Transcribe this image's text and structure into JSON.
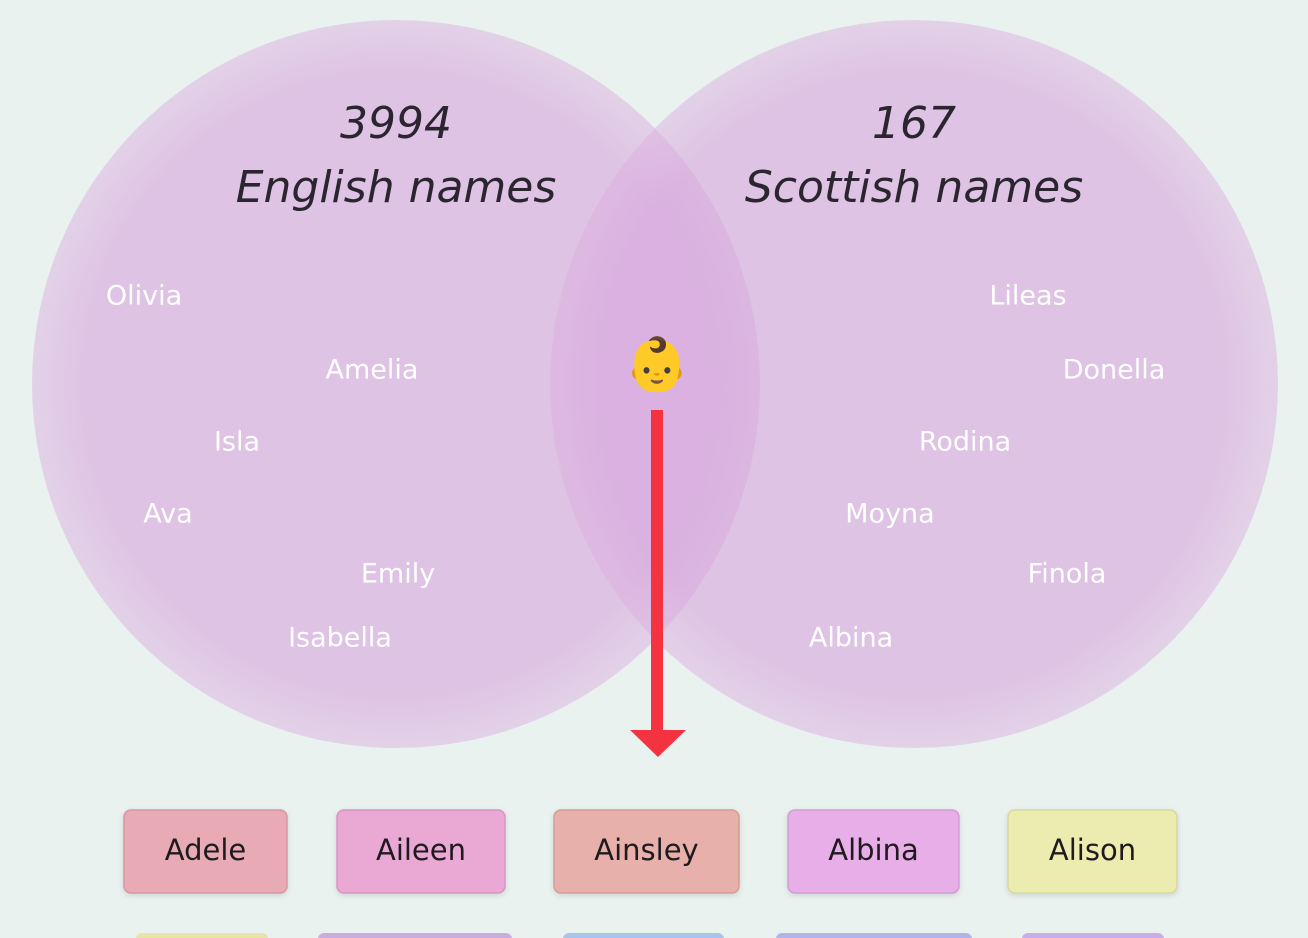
{
  "left_set": {
    "count": 3994,
    "label": "English names",
    "names": [
      "Olivia",
      "Amelia",
      "Isla",
      "Ava",
      "Emily",
      "Isabella"
    ]
  },
  "right_set": {
    "count": 167,
    "label": "Scottish names",
    "names": [
      "Lileas",
      "Donella",
      "Rodina",
      "Moyna",
      "Finola",
      "Albina"
    ]
  },
  "center": {
    "icon": "👶"
  },
  "chips": [
    "Adele",
    "Aileen",
    "Ainsley",
    "Albina",
    "Alison"
  ]
}
